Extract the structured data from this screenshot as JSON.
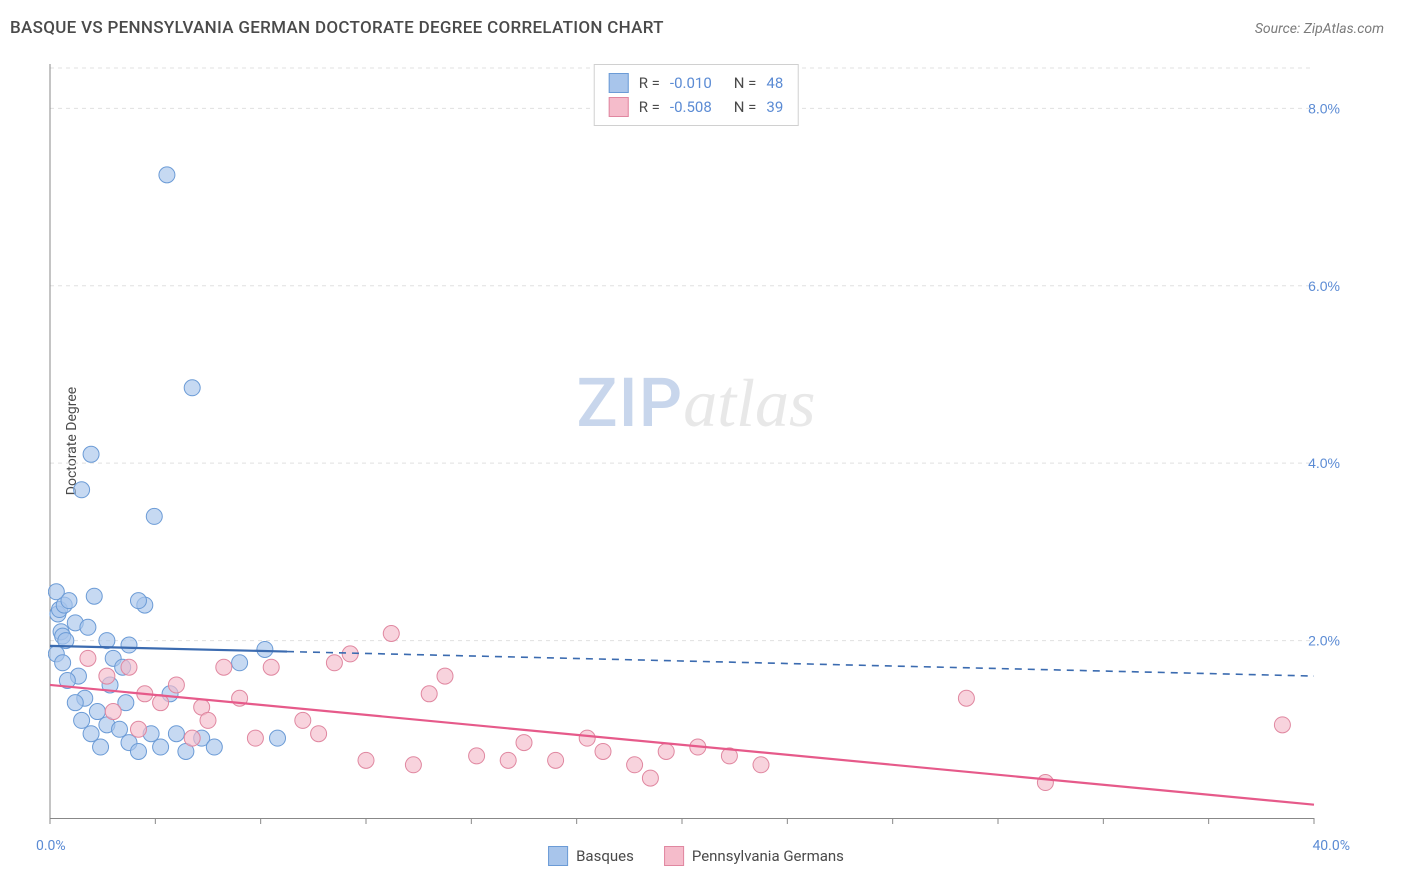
{
  "title": "BASQUE VS PENNSYLVANIA GERMAN DOCTORATE DEGREE CORRELATION CHART",
  "source": "Source: ZipAtlas.com",
  "ylabel": "Doctorate Degree",
  "watermark_a": "ZIP",
  "watermark_b": "atlas",
  "chart": {
    "type": "scatter",
    "xlim": [
      0,
      40
    ],
    "ylim": [
      0,
      8.5
    ],
    "xtick_labels": [
      "0.0%",
      "40.0%"
    ],
    "ytick_labels": [
      "2.0%",
      "4.0%",
      "6.0%",
      "8.0%"
    ],
    "ytick_values": [
      2,
      4,
      6,
      8
    ],
    "grid_color": "#e0e0e0",
    "axis_color": "#888888",
    "background": "#ffffff",
    "marker_radius": 8,
    "series": [
      {
        "name": "Basques",
        "color_fill": "#a8c5eb",
        "color_stroke": "#6b9bd6",
        "fill_opacity": 0.65,
        "r": "-0.010",
        "n": "48",
        "trend": {
          "y0": 1.94,
          "y40": 1.6,
          "color": "#3b6bb0",
          "solid_until_x": 7.5
        },
        "points": [
          [
            0.2,
            2.55
          ],
          [
            0.25,
            2.3
          ],
          [
            0.3,
            2.35
          ],
          [
            0.35,
            2.1
          ],
          [
            0.4,
            2.05
          ],
          [
            0.5,
            2.0
          ],
          [
            0.2,
            1.85
          ],
          [
            0.45,
            2.4
          ],
          [
            0.6,
            2.45
          ],
          [
            0.8,
            2.2
          ],
          [
            1.2,
            2.15
          ],
          [
            1.4,
            2.5
          ],
          [
            1.8,
            2.0
          ],
          [
            2.0,
            1.8
          ],
          [
            2.3,
            1.7
          ],
          [
            2.5,
            1.95
          ],
          [
            3.0,
            2.4
          ],
          [
            0.9,
            1.6
          ],
          [
            1.1,
            1.35
          ],
          [
            1.5,
            1.2
          ],
          [
            1.8,
            1.05
          ],
          [
            2.2,
            1.0
          ],
          [
            2.5,
            0.85
          ],
          [
            2.8,
            0.75
          ],
          [
            3.2,
            0.95
          ],
          [
            3.5,
            0.8
          ],
          [
            4.0,
            0.95
          ],
          [
            4.3,
            0.75
          ],
          [
            4.8,
            0.9
          ],
          [
            5.2,
            0.8
          ],
          [
            0.8,
            1.3
          ],
          [
            1.0,
            1.1
          ],
          [
            1.3,
            0.95
          ],
          [
            1.6,
            0.8
          ],
          [
            1.9,
            1.5
          ],
          [
            2.4,
            1.3
          ],
          [
            3.8,
            1.4
          ],
          [
            6.0,
            1.75
          ],
          [
            6.8,
            1.9
          ],
          [
            7.2,
            0.9
          ],
          [
            2.8,
            2.45
          ],
          [
            3.7,
            7.25
          ],
          [
            4.5,
            4.85
          ],
          [
            1.3,
            4.1
          ],
          [
            1.0,
            3.7
          ],
          [
            3.3,
            3.4
          ],
          [
            0.4,
            1.75
          ],
          [
            0.55,
            1.55
          ]
        ]
      },
      {
        "name": "Pennsylvania Germans",
        "color_fill": "#f5bccb",
        "color_stroke": "#e087a0",
        "fill_opacity": 0.65,
        "r": "-0.508",
        "n": "39",
        "trend": {
          "y0": 1.5,
          "y40": 0.15,
          "color": "#e65a8a",
          "solid_until_x": 40
        },
        "points": [
          [
            1.2,
            1.8
          ],
          [
            1.8,
            1.6
          ],
          [
            2.5,
            1.7
          ],
          [
            3.0,
            1.4
          ],
          [
            3.5,
            1.3
          ],
          [
            4.0,
            1.5
          ],
          [
            4.8,
            1.25
          ],
          [
            5.5,
            1.7
          ],
          [
            6.0,
            1.35
          ],
          [
            7.0,
            1.7
          ],
          [
            8.0,
            1.1
          ],
          [
            8.5,
            0.95
          ],
          [
            9.5,
            1.85
          ],
          [
            10.0,
            0.65
          ],
          [
            10.8,
            2.08
          ],
          [
            11.5,
            0.6
          ],
          [
            12.0,
            1.4
          ],
          [
            12.5,
            1.6
          ],
          [
            13.5,
            0.7
          ],
          [
            14.5,
            0.65
          ],
          [
            15.0,
            0.85
          ],
          [
            16.0,
            0.65
          ],
          [
            17.0,
            0.9
          ],
          [
            17.5,
            0.75
          ],
          [
            18.5,
            0.6
          ],
          [
            19.0,
            0.45
          ],
          [
            19.5,
            0.75
          ],
          [
            20.5,
            0.8
          ],
          [
            21.5,
            0.7
          ],
          [
            22.5,
            0.6
          ],
          [
            29.0,
            1.35
          ],
          [
            31.5,
            0.4
          ],
          [
            39.0,
            1.05
          ],
          [
            2.0,
            1.2
          ],
          [
            2.8,
            1.0
          ],
          [
            4.5,
            0.9
          ],
          [
            5.0,
            1.1
          ],
          [
            6.5,
            0.9
          ],
          [
            9.0,
            1.75
          ]
        ]
      }
    ]
  },
  "legend_bottom": [
    {
      "label": "Basques",
      "fill": "#a8c5eb",
      "stroke": "#6b9bd6"
    },
    {
      "label": "Pennsylvania Germans",
      "fill": "#f5bccb",
      "stroke": "#e087a0"
    }
  ]
}
